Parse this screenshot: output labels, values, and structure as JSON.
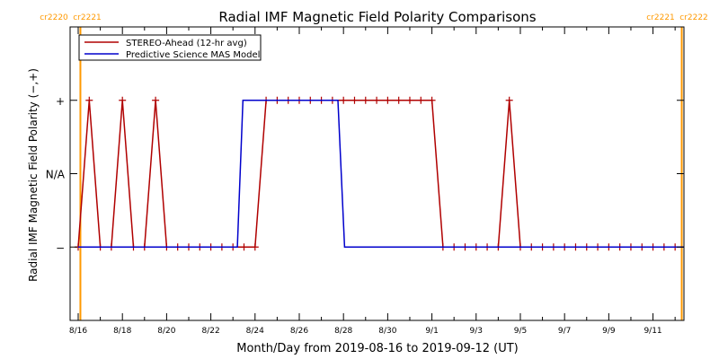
{
  "colors": {
    "observed": "#b00000",
    "model": "#0000cc",
    "cr_marker": "#ff9900",
    "axis": "#000000",
    "background": "#ffffff"
  },
  "chart_data": {
    "type": "line",
    "title": "Radial IMF Magnetic Field Polarity Comparisons",
    "xlabel": "Month/Day from 2019-08-16 to 2019-09-12 (UT)",
    "ylabel": "Radial IMF Magnetic Field Polarity (−,+)",
    "x_unit": "days since 2019-08-16 00:00 UT",
    "xlim": [
      0,
      27.4
    ],
    "ylim": [
      -2,
      2
    ],
    "x_ticks": [
      {
        "x": 0,
        "label": "8/16"
      },
      {
        "x": 2,
        "label": "8/18"
      },
      {
        "x": 4,
        "label": "8/20"
      },
      {
        "x": 6,
        "label": "8/22"
      },
      {
        "x": 8,
        "label": "8/24"
      },
      {
        "x": 10,
        "label": "8/26"
      },
      {
        "x": 12,
        "label": "8/28"
      },
      {
        "x": 14,
        "label": "8/30"
      },
      {
        "x": 16,
        "label": "9/1"
      },
      {
        "x": 18,
        "label": "9/3"
      },
      {
        "x": 20,
        "label": "9/5"
      },
      {
        "x": 22,
        "label": "9/7"
      },
      {
        "x": 24,
        "label": "9/9"
      },
      {
        "x": 26,
        "label": "9/11"
      }
    ],
    "y_ticks": [
      {
        "y": 1,
        "label": "+"
      },
      {
        "y": 0,
        "label": "N/A"
      },
      {
        "y": -1,
        "label": "−"
      }
    ],
    "legend": {
      "placement": "top-left",
      "entries": [
        {
          "label": "STEREO-Ahead (12-hr avg)",
          "series": "observed"
        },
        {
          "label": "Predictive Science MAS Model",
          "series": "model"
        }
      ]
    },
    "carrington_markers": [
      {
        "x": 0.1,
        "labels": [
          "cr2220",
          "cr2221"
        ],
        "side": "left"
      },
      {
        "x": 27.3,
        "labels": [
          "cr2221",
          "cr2222"
        ],
        "side": "right"
      }
    ],
    "series": [
      {
        "name": "STEREO-Ahead (12-hr avg)",
        "key": "observed",
        "markers": true,
        "points": [
          [
            0,
            -1
          ],
          [
            0.5,
            1
          ],
          [
            1,
            -1
          ],
          [
            1.5,
            -1
          ],
          [
            2,
            1
          ],
          [
            2.5,
            -1
          ],
          [
            3,
            -1
          ],
          [
            3.5,
            1
          ],
          [
            4,
            -1
          ],
          [
            4.5,
            -1
          ],
          [
            5,
            -1
          ],
          [
            5.5,
            -1
          ],
          [
            6,
            -1
          ],
          [
            6.5,
            -1
          ],
          [
            7,
            -1
          ],
          [
            7.5,
            -1
          ],
          [
            8,
            -1
          ],
          [
            8.5,
            1
          ],
          [
            9,
            1
          ],
          [
            9.5,
            1
          ],
          [
            10,
            1
          ],
          [
            10.5,
            1
          ],
          [
            11,
            1
          ],
          [
            11.5,
            1
          ],
          [
            12,
            1
          ],
          [
            12.5,
            1
          ],
          [
            13,
            1
          ],
          [
            13.5,
            1
          ],
          [
            14,
            1
          ],
          [
            14.5,
            1
          ],
          [
            15,
            1
          ],
          [
            15.5,
            1
          ],
          [
            16,
            1
          ],
          [
            16.5,
            -1
          ],
          [
            17,
            -1
          ],
          [
            17.5,
            -1
          ],
          [
            18,
            -1
          ],
          [
            18.5,
            -1
          ],
          [
            19,
            -1
          ],
          [
            19.5,
            1
          ],
          [
            20,
            -1
          ],
          [
            20.5,
            -1
          ],
          [
            21,
            -1
          ],
          [
            21.5,
            -1
          ],
          [
            22,
            -1
          ],
          [
            22.5,
            -1
          ],
          [
            23,
            -1
          ],
          [
            23.5,
            -1
          ],
          [
            24,
            -1
          ],
          [
            24.5,
            -1
          ],
          [
            25,
            -1
          ],
          [
            25.5,
            -1
          ],
          [
            26,
            -1
          ],
          [
            26.5,
            -1
          ],
          [
            27,
            -1
          ]
        ]
      },
      {
        "name": "Predictive Science MAS Model",
        "key": "model",
        "markers": false,
        "points": [
          [
            0,
            -1
          ],
          [
            7.2,
            -1
          ],
          [
            7.45,
            1
          ],
          [
            11.75,
            1
          ],
          [
            12.05,
            -1
          ],
          [
            27.4,
            -1
          ]
        ]
      }
    ]
  }
}
